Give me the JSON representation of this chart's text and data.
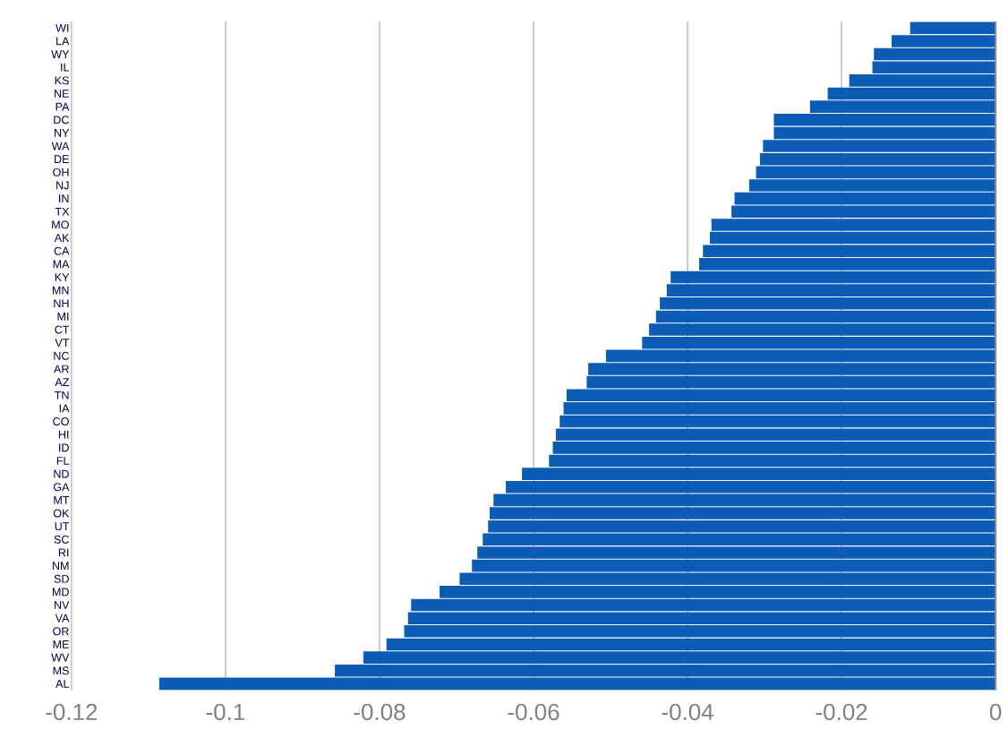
{
  "chart_data": {
    "type": "bar",
    "orientation": "horizontal",
    "categories": [
      "WI",
      "LA",
      "WY",
      "IL",
      "KS",
      "NE",
      "PA",
      "DC",
      "NY",
      "WA",
      "DE",
      "OH",
      "NJ",
      "IN",
      "TX",
      "MO",
      "AK",
      "CA",
      "MA",
      "KY",
      "MN",
      "NH",
      "MI",
      "CT",
      "VT",
      "NC",
      "AR",
      "AZ",
      "TN",
      "IA",
      "CO",
      "HI",
      "ID",
      "FL",
      "ND",
      "GA",
      "MT",
      "OK",
      "UT",
      "SC",
      "RI",
      "NM",
      "SD",
      "MD",
      "NV",
      "VA",
      "OR",
      "ME",
      "WV",
      "MS",
      "AL"
    ],
    "values": [
      -0.0111,
      -0.0135,
      -0.0158,
      -0.016,
      -0.019,
      -0.0218,
      -0.0241,
      -0.0288,
      -0.0288,
      -0.0302,
      -0.0306,
      -0.0311,
      -0.032,
      -0.0339,
      -0.0343,
      -0.0369,
      -0.0371,
      -0.038,
      -0.0385,
      -0.0422,
      -0.0427,
      -0.0436,
      -0.0441,
      -0.045,
      -0.0459,
      -0.0506,
      -0.0529,
      -0.0531,
      -0.0557,
      -0.0561,
      -0.0566,
      -0.0571,
      -0.0575,
      -0.058,
      -0.0615,
      -0.0636,
      -0.0652,
      -0.0657,
      -0.0659,
      -0.0666,
      -0.0673,
      -0.068,
      -0.0696,
      -0.0722,
      -0.0759,
      -0.0763,
      -0.0768,
      -0.0791,
      -0.0821,
      -0.0858,
      -0.1086
    ],
    "color": "#0b5cb5",
    "xlim": [
      -0.12,
      0
    ],
    "xticks": [
      -0.12,
      -0.1,
      -0.08,
      -0.06,
      -0.04,
      -0.02,
      0
    ],
    "grid": "x"
  }
}
